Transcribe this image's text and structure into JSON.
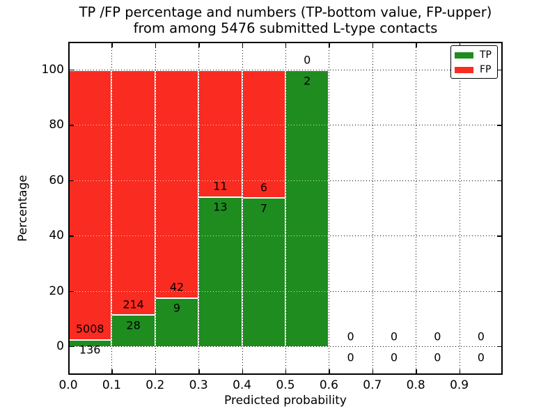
{
  "figure": {
    "title_line1": "TP /FP percentage and numbers (TP-bottom value, FP-upper)",
    "title_line2": "from among 5476 submitted L-type contacts",
    "xlabel": "Predicted probability",
    "ylabel": "Percentage"
  },
  "legend": {
    "items": [
      {
        "label": "TP",
        "color": "#1e8c1e"
      },
      {
        "label": "FP",
        "color": "#fa2b21"
      }
    ]
  },
  "colors": {
    "tp_green": "#1e8c1e",
    "fp_red": "#fa2b21",
    "bar_edge": "#ffffff",
    "grid": "#000000"
  },
  "chart_data": {
    "type": "bar",
    "stacked": true,
    "title": "TP /FP percentage and numbers (TP-bottom value, FP-upper) from among 5476 submitted L-type contacts",
    "xlabel": "Predicted probability",
    "ylabel": "Percentage",
    "total_contacts": 5476,
    "grid": true,
    "legend_position": "upper right",
    "xlim": [
      0.0,
      1.0
    ],
    "ylim": [
      -10,
      110
    ],
    "bin_width": 0.1,
    "bin_start": [
      0.0,
      0.1,
      0.2,
      0.3,
      0.4,
      0.5,
      0.6,
      0.7,
      0.8,
      0.9
    ],
    "categories": [
      "0.0-0.1",
      "0.1-0.2",
      "0.2-0.3",
      "0.3-0.4",
      "0.4-0.5",
      "0.5-0.6",
      "0.6-0.7",
      "0.7-0.8",
      "0.8-0.9",
      "0.9-1.0"
    ],
    "xticks": [
      "0.0",
      "0.1",
      "0.2",
      "0.3",
      "0.4",
      "0.5",
      "0.6",
      "0.7",
      "0.8",
      "0.9"
    ],
    "yticks": [
      0,
      20,
      40,
      60,
      80,
      100
    ],
    "series": [
      {
        "name": "TP",
        "color": "#1e8c1e",
        "counts": [
          136,
          28,
          9,
          13,
          7,
          2,
          0,
          0,
          0,
          0
        ],
        "pct": [
          2.64,
          11.57,
          17.65,
          54.17,
          53.85,
          100,
          0,
          0,
          0,
          0
        ]
      },
      {
        "name": "FP",
        "color": "#fa2b21",
        "counts": [
          5008,
          214,
          42,
          11,
          6,
          0,
          0,
          0,
          0,
          0
        ],
        "pct": [
          97.36,
          88.43,
          82.35,
          45.83,
          46.15,
          0,
          0,
          0,
          0,
          0
        ]
      }
    ]
  }
}
